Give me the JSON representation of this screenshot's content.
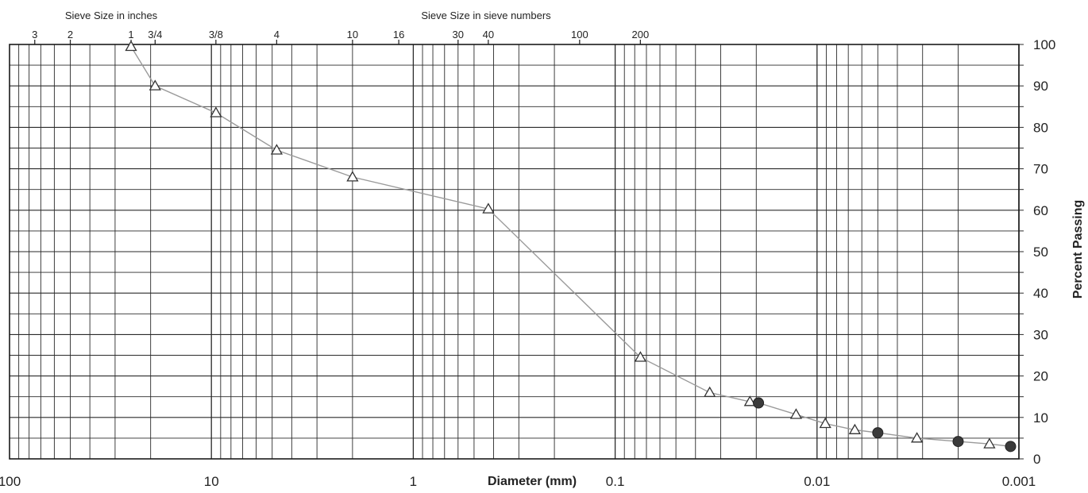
{
  "chart_data": {
    "type": "scatter",
    "x_scale": "log",
    "x_reversed": true,
    "xlim": [
      100,
      0.001
    ],
    "ylim": [
      0,
      100
    ],
    "grid": true,
    "xlabel": "Diameter (mm)",
    "ylabel": "Percent Passing",
    "top_axis_titles": {
      "inches": "Sieve Size in inches",
      "numbers": "Sieve Size in sieve numbers"
    },
    "x_tick_labels": [
      {
        "x": 100,
        "label": "100"
      },
      {
        "x": 10,
        "label": "10"
      },
      {
        "x": 1,
        "label": "1"
      },
      {
        "x": 0.1,
        "label": "0.1"
      },
      {
        "x": 0.01,
        "label": "0.01"
      },
      {
        "x": 0.001,
        "label": "0.001"
      }
    ],
    "y_tick_labels": [
      "0",
      "10",
      "20",
      "30",
      "40",
      "50",
      "60",
      "70",
      "80",
      "90",
      "100"
    ],
    "sieve_labels": [
      {
        "label": "3",
        "x": 75
      },
      {
        "label": "2",
        "x": 50
      },
      {
        "label": "1",
        "x": 25
      },
      {
        "label": "3/4",
        "x": 19
      },
      {
        "label": "3/8",
        "x": 9.5
      },
      {
        "label": "4",
        "x": 4.75
      },
      {
        "label": "10",
        "x": 2.0
      },
      {
        "label": "16",
        "x": 1.18
      },
      {
        "label": "30",
        "x": 0.6
      },
      {
        "label": "40",
        "x": 0.425
      },
      {
        "label": "100",
        "x": 0.15
      },
      {
        "label": "200",
        "x": 0.075
      }
    ],
    "series": [
      {
        "marker": "triangle",
        "x": [
          25,
          19,
          9.5,
          4.75,
          2.0,
          0.425,
          0.075,
          0.034,
          0.0215,
          0.0127,
          0.0091,
          0.0065,
          0.0032,
          0.0014
        ],
        "y": [
          99.5,
          90,
          83.5,
          74.5,
          68,
          60.3,
          24.5,
          16,
          13.8,
          10.7,
          8.5,
          7,
          5,
          3.6
        ]
      },
      {
        "marker": "circle",
        "x": [
          0.0195,
          0.005,
          0.002,
          0.0011
        ],
        "y": [
          13.5,
          6.3,
          4.2,
          3.0
        ]
      }
    ],
    "colors": {
      "line": "#9a9a9a",
      "grid": "#2a2a2a",
      "marker": "#333333",
      "circle_fill": "#3a3a3a"
    }
  }
}
